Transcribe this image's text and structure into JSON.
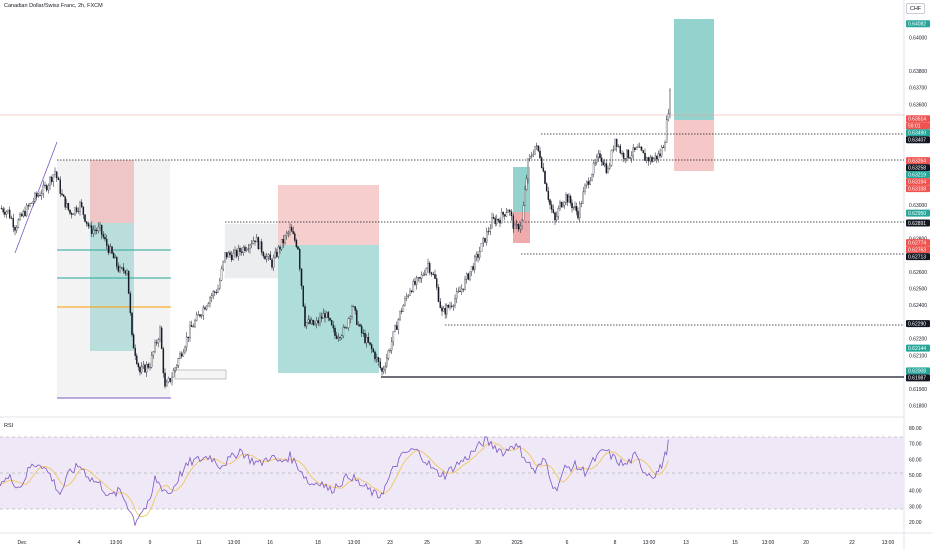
{
  "header": {
    "title": "Canadian Dollar/Swiss Franc, 2h, FXCM",
    "currency": "CHF"
  },
  "rsi_panel": {
    "label": "RSI"
  },
  "colors": {
    "candle": "#131722",
    "rsi_line": "#7e57c2",
    "rsi_band": "#ede7f6",
    "rsi_ma": "#f2c14e",
    "target_zone": "#4db6ac",
    "stop_zone": "#e57373",
    "range_box": "#9aa0a6",
    "fib_green": "#26a69a",
    "fib_orange": "#ff9800",
    "trendline": "#7e57c2",
    "last_price_line": "#ef9a9a"
  },
  "price_axis": {
    "ticks": [
      "0.64000",
      "0.63800",
      "0.63700",
      "0.63600",
      "0.63400",
      "0.63200",
      "0.63000",
      "0.62800",
      "0.62600",
      "0.62500",
      "0.62400",
      "0.62300",
      "0.62200",
      "0.62100",
      "0.61900",
      "0.61800"
    ],
    "badges": [
      {
        "text": "0.64082",
        "kind": "green"
      },
      {
        "text": "0.63514",
        "kind": "red"
      },
      {
        "text": "59:01",
        "kind": "red"
      },
      {
        "text": "0.63490",
        "kind": "green"
      },
      {
        "text": "0.63407",
        "kind": "black"
      },
      {
        "text": "0.63264",
        "kind": "red"
      },
      {
        "text": "0.63258",
        "kind": "black"
      },
      {
        "text": "0.63219",
        "kind": "green"
      },
      {
        "text": "0.63194",
        "kind": "red"
      },
      {
        "text": "0.63108",
        "kind": "red"
      },
      {
        "text": "0.62950",
        "kind": "green"
      },
      {
        "text": "0.62891",
        "kind": "black"
      },
      {
        "text": "0.62774",
        "kind": "red"
      },
      {
        "text": "0.62763",
        "kind": "red"
      },
      {
        "text": "0.62713",
        "kind": "black"
      },
      {
        "text": "0.62290",
        "kind": "black"
      },
      {
        "text": "0.62144",
        "kind": "green"
      },
      {
        "text": "0.62008",
        "kind": "green"
      },
      {
        "text": "0.61987",
        "kind": "black"
      }
    ]
  },
  "rsi_axis": {
    "ticks": [
      "80.00",
      "70.00",
      "60.00",
      "50.00",
      "40.00",
      "30.00",
      "20.00"
    ]
  },
  "time_axis": {
    "labels": [
      "Dec",
      "4",
      "13:00",
      "9",
      "11",
      "13:00",
      "16",
      "18",
      "13:00",
      "23",
      "25",
      "30",
      "2025",
      "6",
      "8",
      "13:00",
      "13",
      "15",
      "13:00",
      "20",
      "22",
      "13:00"
    ]
  },
  "chart_data": {
    "type": "candlestick",
    "title": "Canadian Dollar/Swiss Franc, 2h, FXCM",
    "symbol": "CADCHF",
    "interval": "2h",
    "source": "FXCM",
    "x_labels": [
      "Dec",
      "4",
      "13:00",
      "9",
      "11",
      "13:00",
      "16",
      "18",
      "13:00",
      "23",
      "25",
      "30",
      "2025",
      "6",
      "8",
      "13:00",
      "13",
      "15",
      "13:00",
      "20",
      "22",
      "13:00"
    ],
    "y_range": [
      0.6175,
      0.642
    ],
    "close_path": [
      [
        0,
        0.6298
      ],
      [
        8,
        0.6296
      ],
      [
        15,
        0.6287
      ],
      [
        25,
        0.6296
      ],
      [
        35,
        0.6304
      ],
      [
        45,
        0.631
      ],
      [
        55,
        0.632
      ],
      [
        62,
        0.6305
      ],
      [
        70,
        0.6295
      ],
      [
        80,
        0.63
      ],
      [
        90,
        0.6285
      ],
      [
        100,
        0.6285
      ],
      [
        105,
        0.6278
      ],
      [
        112,
        0.627
      ],
      [
        120,
        0.626
      ],
      [
        127,
        0.6262
      ],
      [
        132,
        0.622
      ],
      [
        140,
        0.62
      ],
      [
        150,
        0.6205
      ],
      [
        160,
        0.6225
      ],
      [
        165,
        0.619
      ],
      [
        172,
        0.6198
      ],
      [
        180,
        0.621
      ],
      [
        190,
        0.6225
      ],
      [
        200,
        0.6235
      ],
      [
        210,
        0.6245
      ],
      [
        218,
        0.625
      ],
      [
        225,
        0.627
      ],
      [
        235,
        0.627
      ],
      [
        245,
        0.6275
      ],
      [
        255,
        0.628
      ],
      [
        265,
        0.627
      ],
      [
        272,
        0.6265
      ],
      [
        280,
        0.6275
      ],
      [
        290,
        0.6285
      ],
      [
        298,
        0.6275
      ],
      [
        305,
        0.623
      ],
      [
        315,
        0.6228
      ],
      [
        325,
        0.6235
      ],
      [
        335,
        0.6222
      ],
      [
        345,
        0.6225
      ],
      [
        352,
        0.624
      ],
      [
        360,
        0.6225
      ],
      [
        370,
        0.6215
      ],
      [
        375,
        0.621
      ],
      [
        382,
        0.62
      ],
      [
        390,
        0.6215
      ],
      [
        400,
        0.6235
      ],
      [
        410,
        0.625
      ],
      [
        420,
        0.6255
      ],
      [
        428,
        0.6265
      ],
      [
        435,
        0.6255
      ],
      [
        442,
        0.6235
      ],
      [
        450,
        0.624
      ],
      [
        460,
        0.6248
      ],
      [
        470,
        0.626
      ],
      [
        478,
        0.627
      ],
      [
        485,
        0.628
      ],
      [
        492,
        0.629
      ],
      [
        500,
        0.6292
      ],
      [
        508,
        0.6298
      ],
      [
        515,
        0.6285
      ],
      [
        522,
        0.629
      ],
      [
        528,
        0.6325
      ],
      [
        535,
        0.6335
      ],
      [
        540,
        0.633
      ],
      [
        545,
        0.6315
      ],
      [
        550,
        0.63
      ],
      [
        555,
        0.629
      ],
      [
        560,
        0.63
      ],
      [
        566,
        0.6305
      ],
      [
        572,
        0.63
      ],
      [
        578,
        0.6295
      ],
      [
        585,
        0.631
      ],
      [
        592,
        0.632
      ],
      [
        600,
        0.633
      ],
      [
        608,
        0.632
      ],
      [
        615,
        0.634
      ],
      [
        622,
        0.633
      ],
      [
        630,
        0.633
      ],
      [
        638,
        0.6333
      ],
      [
        645,
        0.6328
      ],
      [
        652,
        0.6327
      ],
      [
        660,
        0.633
      ],
      [
        665,
        0.634
      ],
      [
        670,
        0.6366
      ]
    ],
    "rsi_series": [
      [
        0,
        46
      ],
      [
        10,
        48
      ],
      [
        20,
        42
      ],
      [
        30,
        55
      ],
      [
        40,
        58
      ],
      [
        50,
        50
      ],
      [
        60,
        38
      ],
      [
        70,
        52
      ],
      [
        80,
        56
      ],
      [
        90,
        48
      ],
      [
        100,
        44
      ],
      [
        110,
        36
      ],
      [
        120,
        40
      ],
      [
        130,
        28
      ],
      [
        135,
        20
      ],
      [
        140,
        26
      ],
      [
        150,
        32
      ],
      [
        155,
        48
      ],
      [
        162,
        42
      ],
      [
        170,
        38
      ],
      [
        180,
        50
      ],
      [
        190,
        58
      ],
      [
        200,
        60
      ],
      [
        210,
        62
      ],
      [
        220,
        56
      ],
      [
        230,
        60
      ],
      [
        240,
        66
      ],
      [
        250,
        60
      ],
      [
        260,
        57
      ],
      [
        270,
        62
      ],
      [
        280,
        58
      ],
      [
        290,
        62
      ],
      [
        300,
        54
      ],
      [
        310,
        44
      ],
      [
        320,
        46
      ],
      [
        330,
        40
      ],
      [
        340,
        45
      ],
      [
        350,
        50
      ],
      [
        360,
        44
      ],
      [
        370,
        40
      ],
      [
        378,
        36
      ],
      [
        385,
        42
      ],
      [
        395,
        56
      ],
      [
        405,
        64
      ],
      [
        415,
        66
      ],
      [
        425,
        60
      ],
      [
        435,
        52
      ],
      [
        445,
        50
      ],
      [
        455,
        56
      ],
      [
        465,
        60
      ],
      [
        475,
        66
      ],
      [
        485,
        72
      ],
      [
        495,
        68
      ],
      [
        505,
        64
      ],
      [
        512,
        70
      ],
      [
        520,
        66
      ],
      [
        528,
        58
      ],
      [
        535,
        52
      ],
      [
        545,
        60
      ],
      [
        555,
        40
      ],
      [
        565,
        54
      ],
      [
        575,
        56
      ],
      [
        585,
        52
      ],
      [
        595,
        60
      ],
      [
        605,
        66
      ],
      [
        615,
        60
      ],
      [
        625,
        56
      ],
      [
        635,
        62
      ],
      [
        645,
        52
      ],
      [
        655,
        50
      ],
      [
        660,
        54
      ],
      [
        665,
        62
      ],
      [
        670,
        74
      ]
    ],
    "rsi_levels": {
      "overbought": 70,
      "middle": 50,
      "oversold": 30
    }
  }
}
